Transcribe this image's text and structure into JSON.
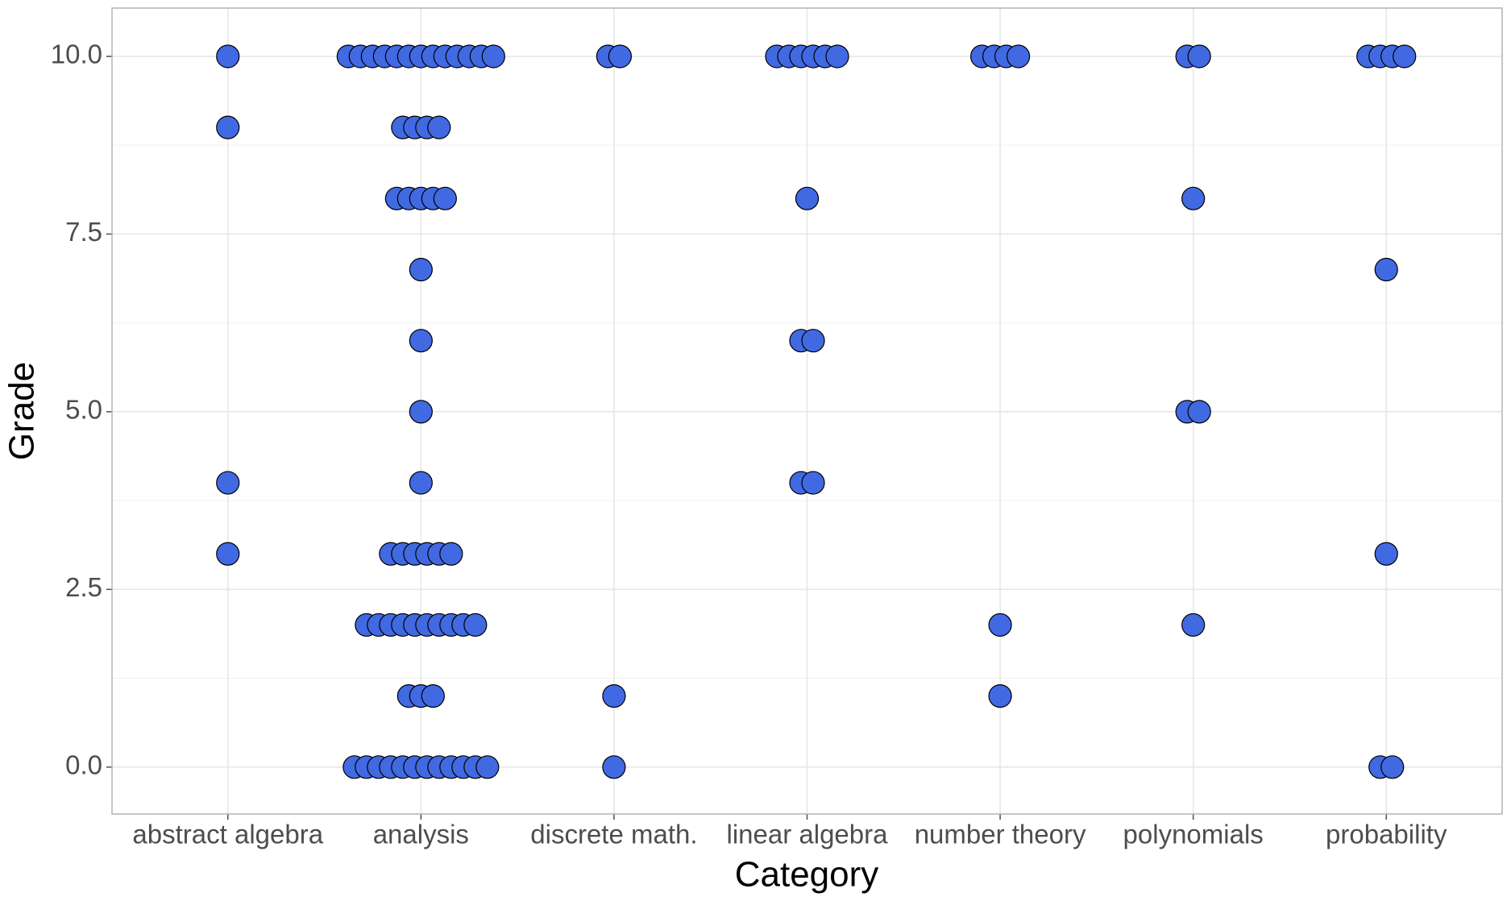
{
  "chart_data": {
    "type": "dotplot",
    "x_label": "Category",
    "y_label": "Grade",
    "categories": [
      "abstract algebra",
      "analysis",
      "discrete math.",
      "linear algebra",
      "number theory",
      "polynomials",
      "probability"
    ],
    "values": [
      [
        10,
        9,
        4,
        3
      ],
      [
        10,
        10,
        10,
        10,
        10,
        10,
        10,
        10,
        10,
        10,
        10,
        10,
        10,
        9,
        9,
        9,
        9,
        8,
        8,
        8,
        8,
        8,
        7,
        6,
        5,
        4,
        3,
        3,
        3,
        3,
        3,
        3,
        2,
        2,
        2,
        2,
        2,
        2,
        2,
        2,
        2,
        2,
        1,
        1,
        1,
        0,
        0,
        0,
        0,
        0,
        0,
        0,
        0,
        0,
        0,
        0,
        0
      ],
      [
        10,
        10,
        1,
        0
      ],
      [
        10,
        10,
        10,
        10,
        10,
        10,
        8,
        6,
        6,
        4,
        4
      ],
      [
        10,
        10,
        10,
        10,
        2,
        1
      ],
      [
        10,
        10,
        8,
        5,
        5,
        2
      ],
      [
        10,
        10,
        10,
        10,
        7,
        3,
        0,
        0
      ]
    ],
    "color": "#4169e1",
    "ylim": [
      -0.66,
      10.68
    ],
    "yticks": [
      {
        "value": 0,
        "label": "0.0"
      },
      {
        "value": 2.5,
        "label": "2.5"
      },
      {
        "value": 5,
        "label": "5.0"
      },
      {
        "value": 7.5,
        "label": "7.5"
      },
      {
        "value": 10,
        "label": "10.0"
      }
    ],
    "grid": true
  }
}
